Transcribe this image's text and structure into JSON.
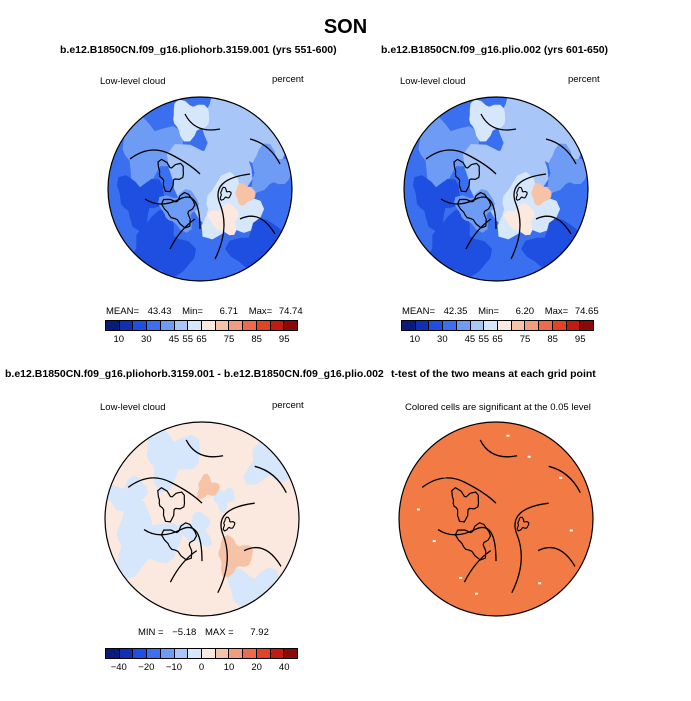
{
  "season": "SON",
  "palette_main": [
    "#0a1a7a",
    "#0f2fb5",
    "#1f4fe0",
    "#3a70f0",
    "#6e9cf5",
    "#a9c6f8",
    "#d6e6fb",
    "#fbe9df",
    "#f6c3a6",
    "#f29d7c",
    "#ec6b4a",
    "#e04325",
    "#c01a12",
    "#8a0a0a"
  ],
  "palette_t": "#f27a45",
  "panels": [
    {
      "title": "b.e12.B1850CN.f09_g16.pliohorb.3159.001 (yrs 551-600)",
      "left_label": "Low-level cloud",
      "right_label": "percent",
      "stats": {
        "mean_label": "MEAN=",
        "mean": "43.43",
        "min_label": "Min=",
        "min": "6.71",
        "max_label": "Max=",
        "max": "74.74"
      },
      "ticks": [
        "10",
        "30",
        "45",
        "55",
        "65",
        "75",
        "85",
        "95"
      ]
    },
    {
      "title": "b.e12.B1850CN.f09_g16.plio.002 (yrs 601-650)",
      "left_label": "Low-level cloud",
      "right_label": "percent",
      "stats": {
        "mean_label": "MEAN=",
        "mean": "42.35",
        "min_label": "Min=",
        "min": "6.20",
        "max_label": "Max=",
        "max": "74.65"
      },
      "ticks": [
        "10",
        "30",
        "45",
        "55",
        "65",
        "75",
        "85",
        "95"
      ]
    },
    {
      "title": "b.e12.B1850CN.f09_g16.pliohorb.3159.001 - b.e12.B1850CN.f09_g16.plio.002",
      "left_label": "Low-level cloud",
      "right_label": "percent",
      "stats": {
        "min_label": "MIN =",
        "min": "−5.18",
        "max_label": "MAX =",
        "max": "7.92"
      },
      "ticks": [
        "−40",
        "−20",
        "−10",
        "0",
        "10",
        "20",
        "40"
      ]
    },
    {
      "title": "t-test of the two means at each grid point",
      "sub_label": "Colored cells are significant at the 0.05 level"
    }
  ],
  "chart_data": [
    {
      "type": "heatmap",
      "title": "b.e12.B1850CN.f09_g16.pliohorb.3159.001 (yrs 551-600)",
      "variable": "Low-level cloud",
      "units": "percent",
      "mean": 43.43,
      "min": 6.71,
      "max": 74.74,
      "levels": [
        10,
        30,
        45,
        55,
        65,
        75,
        85,
        95
      ]
    },
    {
      "type": "heatmap",
      "title": "b.e12.B1850CN.f09_g16.plio.002 (yrs 601-650)",
      "variable": "Low-level cloud",
      "units": "percent",
      "mean": 42.35,
      "min": 6.2,
      "max": 74.65,
      "levels": [
        10,
        30,
        45,
        55,
        65,
        75,
        85,
        95
      ]
    },
    {
      "type": "heatmap",
      "title": "b.e12.B1850CN.f09_g16.pliohorb.3159.001 - b.e12.B1850CN.f09_g16.plio.002",
      "variable": "Low-level cloud",
      "units": "percent",
      "min": -5.18,
      "max": 7.92,
      "levels": [
        -40,
        -20,
        -10,
        0,
        10,
        20,
        40
      ]
    },
    {
      "type": "heatmap",
      "title": "t-test of the two means at each grid point",
      "note": "Colored cells are significant at the 0.05 level"
    }
  ]
}
